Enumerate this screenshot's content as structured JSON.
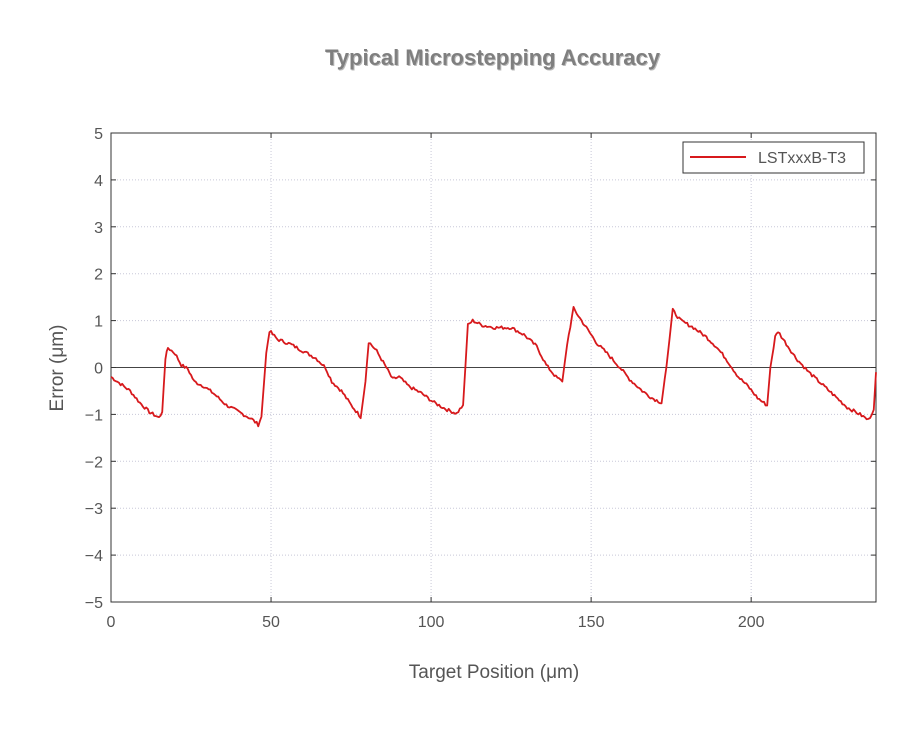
{
  "chart_data": {
    "type": "line",
    "title": "Typical Microstepping Accuracy",
    "xlabel": "Target Position (μm)",
    "ylabel": "Error (μm)",
    "xlim": [
      0,
      239
    ],
    "ylim": [
      -5,
      5
    ],
    "xticks": [
      0,
      50,
      100,
      150,
      200
    ],
    "yticks": [
      -5,
      -4,
      -3,
      -2,
      -1,
      0,
      1,
      2,
      3,
      4,
      5
    ],
    "ytick_labels": [
      "−5",
      "−4",
      "−3",
      "−2",
      "−1",
      "0",
      "1",
      "2",
      "3",
      "4",
      "5"
    ],
    "grid": true,
    "legend": "top-right",
    "series": [
      {
        "name": "LSTxxxB-T3",
        "color": "#d7191c",
        "x": [
          0,
          3,
          6,
          9,
          12,
          15,
          16,
          17,
          17.8,
          20,
          22,
          24,
          26,
          29,
          32,
          36,
          40,
          44,
          46,
          47,
          48.5,
          49.5,
          52,
          56,
          60,
          64,
          67,
          69,
          72,
          75,
          78,
          79.5,
          80.5,
          83,
          86,
          88,
          90,
          93,
          97,
          101,
          105,
          108,
          110,
          111.5,
          113,
          116,
          120,
          125,
          129,
          133,
          136,
          139,
          141,
          142.5,
          144.5,
          147,
          149,
          152,
          155,
          159,
          162,
          166,
          169,
          172,
          173.5,
          175.5,
          178,
          182,
          186,
          189,
          192,
          196,
          199,
          202,
          205,
          206,
          207.5,
          208.4,
          211,
          214,
          218,
          222,
          226,
          230,
          234,
          236.6,
          238.3,
          239
        ],
        "y": [
          -0.2,
          -0.35,
          -0.5,
          -0.75,
          -0.95,
          -1.07,
          -0.95,
          0.2,
          0.42,
          0.3,
          0.05,
          -0.03,
          -0.3,
          -0.4,
          -0.55,
          -0.8,
          -0.95,
          -1.1,
          -1.22,
          -1.05,
          0.3,
          0.78,
          0.6,
          0.5,
          0.35,
          0.2,
          0.0,
          -0.3,
          -0.5,
          -0.8,
          -1.05,
          -0.3,
          0.55,
          0.35,
          0.0,
          -0.25,
          -0.2,
          -0.4,
          -0.55,
          -0.75,
          -0.9,
          -0.98,
          -0.8,
          0.9,
          1.0,
          0.9,
          0.85,
          0.85,
          0.7,
          0.45,
          0.05,
          -0.2,
          -0.3,
          0.5,
          1.26,
          1.0,
          0.8,
          0.5,
          0.3,
          0.0,
          -0.25,
          -0.5,
          -0.65,
          -0.75,
          0.0,
          1.22,
          1.0,
          0.85,
          0.65,
          0.45,
          0.2,
          -0.2,
          -0.4,
          -0.65,
          -0.81,
          0.0,
          0.65,
          0.77,
          0.5,
          0.2,
          -0.1,
          -0.35,
          -0.6,
          -0.85,
          -1.0,
          -1.12,
          -0.9,
          -0.1
        ]
      }
    ]
  }
}
